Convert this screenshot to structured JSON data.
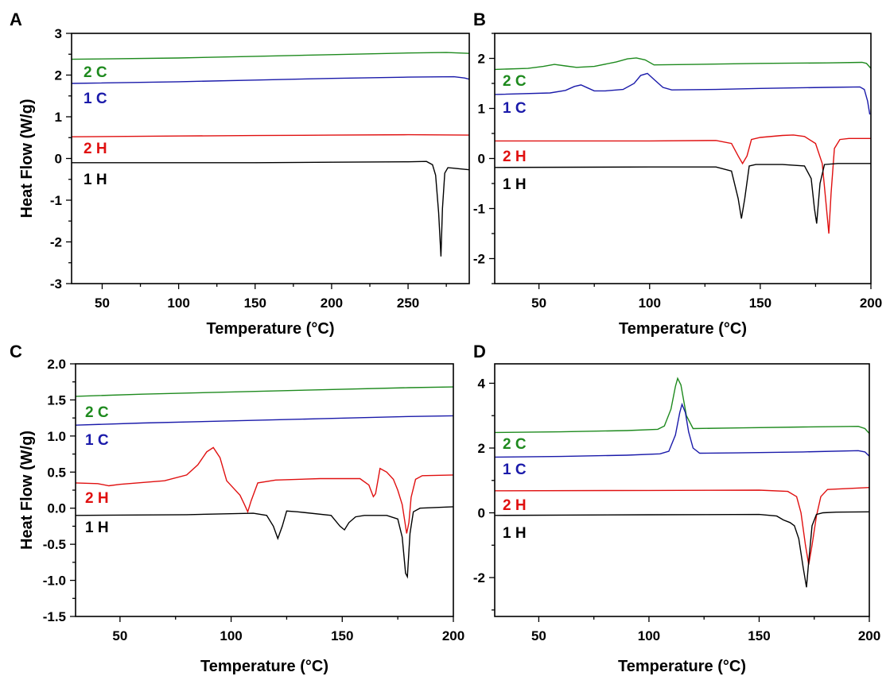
{
  "chart_data": [
    {
      "panel": "A",
      "type": "line",
      "xlabel": "Temperature (°C)",
      "ylabel": "Heat Flow (W/g)",
      "xlim": [
        30,
        290
      ],
      "ylim": [
        -3,
        3
      ],
      "xticks": [
        50,
        100,
        150,
        200,
        250
      ],
      "yticks": [
        -3,
        -2,
        -1,
        0,
        1,
        2,
        3
      ],
      "series": [
        {
          "name": "2 C",
          "color": "#1e8a1e",
          "x": [
            30,
            100,
            150,
            200,
            250,
            275,
            290
          ],
          "y": [
            2.38,
            2.41,
            2.45,
            2.49,
            2.53,
            2.54,
            2.52
          ]
        },
        {
          "name": "1 C",
          "color": "#1a1aaa",
          "x": [
            30,
            100,
            150,
            200,
            250,
            280,
            287,
            290
          ],
          "y": [
            1.8,
            1.84,
            1.88,
            1.92,
            1.95,
            1.96,
            1.93,
            1.9
          ]
        },
        {
          "name": "2 H",
          "color": "#e01010",
          "x": [
            30,
            100,
            150,
            200,
            250,
            290
          ],
          "y": [
            0.52,
            0.54,
            0.55,
            0.56,
            0.57,
            0.56
          ]
        },
        {
          "name": "1 H",
          "color": "#000000",
          "x": [
            30,
            100,
            150,
            200,
            250,
            262,
            266,
            268,
            270,
            271.5,
            272.5,
            274,
            276,
            279,
            284,
            290
          ],
          "y": [
            -0.1,
            -0.1,
            -0.1,
            -0.09,
            -0.08,
            -0.07,
            -0.15,
            -0.4,
            -1.3,
            -2.35,
            -1.2,
            -0.35,
            -0.22,
            -0.23,
            -0.25,
            -0.27
          ]
        }
      ]
    },
    {
      "panel": "B",
      "type": "line",
      "xlabel": "Temperature (°C)",
      "ylabel": "",
      "xlim": [
        30,
        200
      ],
      "ylim": [
        -2.5,
        2.5
      ],
      "xticks": [
        50,
        100,
        150,
        200
      ],
      "yticks": [
        -2,
        -1,
        0,
        1,
        2
      ],
      "series": [
        {
          "name": "2 C",
          "color": "#1e8a1e",
          "x": [
            30,
            45,
            52,
            57,
            62,
            67,
            75,
            85,
            90,
            94,
            98,
            102,
            120,
            150,
            180,
            196,
            198,
            200
          ],
          "y": [
            1.78,
            1.8,
            1.84,
            1.88,
            1.85,
            1.82,
            1.84,
            1.93,
            1.99,
            2.01,
            1.97,
            1.87,
            1.88,
            1.9,
            1.91,
            1.92,
            1.9,
            1.8
          ]
        },
        {
          "name": "1 C",
          "color": "#1a1aaa",
          "x": [
            30,
            55,
            62,
            66,
            69,
            72,
            75,
            80,
            88,
            93,
            96,
            99,
            102,
            106,
            110,
            130,
            150,
            180,
            195,
            197,
            198.5,
            199.5
          ],
          "y": [
            1.28,
            1.31,
            1.36,
            1.44,
            1.47,
            1.41,
            1.35,
            1.35,
            1.38,
            1.5,
            1.66,
            1.7,
            1.58,
            1.42,
            1.37,
            1.38,
            1.4,
            1.42,
            1.43,
            1.38,
            1.15,
            0.88
          ]
        },
        {
          "name": "2 H",
          "color": "#e01010",
          "x": [
            30,
            100,
            130,
            137,
            140,
            142,
            144,
            146,
            150,
            160,
            165,
            170,
            175,
            178,
            179.5,
            181,
            182,
            183.5,
            186,
            190,
            200
          ],
          "y": [
            0.35,
            0.35,
            0.36,
            0.3,
            0.05,
            -0.1,
            0.05,
            0.38,
            0.42,
            0.46,
            0.47,
            0.44,
            0.3,
            -0.1,
            -0.8,
            -1.5,
            -0.7,
            0.2,
            0.38,
            0.4,
            0.4
          ]
        },
        {
          "name": "1 H",
          "color": "#000000",
          "x": [
            30,
            100,
            130,
            137,
            140,
            141.5,
            143,
            145,
            148,
            160,
            170,
            173,
            174.5,
            175.5,
            177,
            179,
            185,
            200
          ],
          "y": [
            -0.18,
            -0.17,
            -0.17,
            -0.25,
            -0.8,
            -1.2,
            -0.8,
            -0.15,
            -0.12,
            -0.12,
            -0.15,
            -0.4,
            -1.0,
            -1.3,
            -0.5,
            -0.12,
            -0.1,
            -0.1
          ]
        }
      ]
    },
    {
      "panel": "C",
      "type": "line",
      "xlabel": "Temperature (°C)",
      "ylabel": "Heat Flow (W/g)",
      "xlim": [
        30,
        200
      ],
      "ylim": [
        -1.5,
        2.0
      ],
      "xticks": [
        50,
        100,
        150,
        200
      ],
      "yticks": [
        -1.5,
        -1.0,
        -0.5,
        0.0,
        0.5,
        1.0,
        1.5,
        2.0
      ],
      "series": [
        {
          "name": "2 C",
          "color": "#1e8a1e",
          "x": [
            30,
            60,
            100,
            140,
            180,
            200
          ],
          "y": [
            1.55,
            1.58,
            1.61,
            1.64,
            1.67,
            1.68
          ]
        },
        {
          "name": "1 C",
          "color": "#1a1aaa",
          "x": [
            30,
            60,
            100,
            140,
            180,
            200
          ],
          "y": [
            1.15,
            1.18,
            1.21,
            1.24,
            1.27,
            1.28
          ]
        },
        {
          "name": "2 H",
          "color": "#e01010",
          "x": [
            30,
            40,
            45,
            50,
            70,
            80,
            85,
            89,
            92,
            95,
            98,
            101,
            104,
            106,
            107.5,
            109,
            112,
            120,
            140,
            158,
            162,
            164,
            165,
            167,
            170,
            173,
            175,
            177,
            178,
            179,
            180,
            181,
            183,
            186,
            200
          ],
          "y": [
            0.35,
            0.34,
            0.31,
            0.33,
            0.38,
            0.46,
            0.6,
            0.78,
            0.84,
            0.7,
            0.38,
            0.28,
            0.18,
            0.05,
            -0.05,
            0.1,
            0.35,
            0.39,
            0.41,
            0.41,
            0.32,
            0.16,
            0.2,
            0.55,
            0.5,
            0.4,
            0.25,
            0.05,
            -0.15,
            -0.35,
            -0.2,
            0.15,
            0.4,
            0.45,
            0.46
          ]
        },
        {
          "name": "1 H",
          "color": "#000000",
          "x": [
            30,
            80,
            110,
            116,
            119,
            121,
            123,
            125,
            130,
            145,
            149,
            151,
            153,
            156,
            160,
            170,
            175,
            177,
            178.5,
            179.3,
            180.5,
            182,
            185,
            200
          ],
          "y": [
            -0.1,
            -0.09,
            -0.07,
            -0.1,
            -0.25,
            -0.42,
            -0.25,
            -0.04,
            -0.05,
            -0.1,
            -0.25,
            -0.3,
            -0.2,
            -0.12,
            -0.1,
            -0.1,
            -0.15,
            -0.4,
            -0.9,
            -0.95,
            -0.35,
            -0.05,
            0.0,
            0.02
          ]
        }
      ]
    },
    {
      "panel": "D",
      "type": "line",
      "xlabel": "Temperature (°C)",
      "ylabel": "",
      "xlim": [
        30,
        200
      ],
      "ylim": [
        -3.2,
        4.6
      ],
      "xticks": [
        50,
        100,
        150,
        200
      ],
      "yticks": [
        -2,
        0,
        2,
        4
      ],
      "series": [
        {
          "name": "2 C",
          "color": "#1e8a1e",
          "x": [
            30,
            60,
            90,
            104,
            107,
            110,
            112,
            113,
            114.5,
            117,
            120,
            140,
            170,
            195,
            198,
            200
          ],
          "y": [
            2.48,
            2.5,
            2.54,
            2.58,
            2.68,
            3.2,
            3.9,
            4.15,
            3.95,
            3.0,
            2.6,
            2.62,
            2.65,
            2.67,
            2.6,
            2.45
          ]
        },
        {
          "name": "1 C",
          "color": "#1a1aaa",
          "x": [
            30,
            60,
            90,
            105,
            109,
            112,
            114,
            115,
            116.5,
            118,
            120,
            123,
            140,
            170,
            195,
            198,
            200
          ],
          "y": [
            1.72,
            1.74,
            1.78,
            1.82,
            1.9,
            2.4,
            3.1,
            3.35,
            3.1,
            2.5,
            2.0,
            1.84,
            1.85,
            1.88,
            1.92,
            1.88,
            1.75
          ]
        },
        {
          "name": "2 H",
          "color": "#e01010",
          "x": [
            30,
            100,
            150,
            163,
            167,
            169,
            171,
            172.5,
            174,
            176,
            178,
            181,
            200
          ],
          "y": [
            0.68,
            0.69,
            0.7,
            0.66,
            0.5,
            0.0,
            -1.0,
            -1.6,
            -1.0,
            -0.1,
            0.5,
            0.72,
            0.78
          ]
        },
        {
          "name": "1 H",
          "color": "#000000",
          "x": [
            30,
            100,
            150,
            158,
            161,
            164,
            166,
            168,
            170,
            171.5,
            172.5,
            174,
            176,
            179,
            185,
            200
          ],
          "y": [
            -0.08,
            -0.06,
            -0.05,
            -0.1,
            -0.22,
            -0.3,
            -0.4,
            -0.8,
            -1.7,
            -2.3,
            -1.5,
            -0.4,
            -0.05,
            0.0,
            0.02,
            0.03
          ]
        }
      ]
    }
  ]
}
